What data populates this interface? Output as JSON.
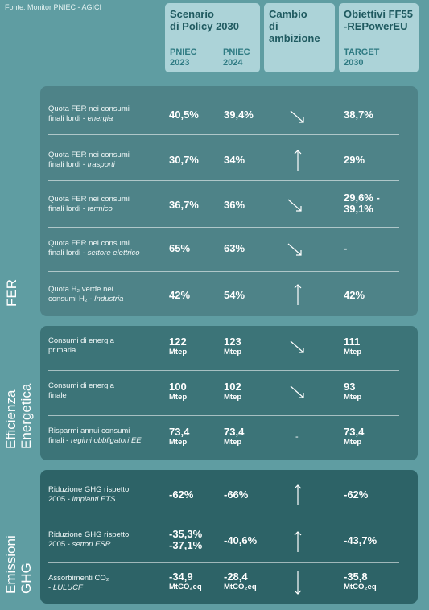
{
  "source": "Fonte: Monitor PNIEC - AGICI",
  "header": {
    "scenario_title": [
      "Scenario",
      "di Policy 2030"
    ],
    "pniec2023": [
      "PNIEC",
      "2023"
    ],
    "pniec2024": [
      "PNIEC",
      "2024"
    ],
    "cambio_title": [
      "Cambio",
      "di ambizione"
    ],
    "obiettivi_title": [
      "Obiettivi FF55",
      "-REPowerEU"
    ],
    "target": [
      "TARGET",
      "2030"
    ]
  },
  "sections": [
    {
      "label": "FER",
      "rows": [
        {
          "l1": "Quota FER nei consumi",
          "l2a": "finali lordi - ",
          "l2i": "energia",
          "v2023": "40,5%",
          "v2024": "39,4%",
          "change": "down",
          "target": "38,7%"
        },
        {
          "l1": "Quota FER nei consumi",
          "l2a": "finali lordi - ",
          "l2i": "trasporti",
          "v2023": "30,7%",
          "v2024": "34%",
          "change": "up",
          "target": "29%"
        },
        {
          "l1": "Quota FER nei consumi",
          "l2a": "finali lordi - ",
          "l2i": "termico",
          "v2023": "36,7%",
          "v2024": "36%",
          "change": "down",
          "target": "29,6% -",
          "target2": "39,1%"
        },
        {
          "l1": "Quota FER nei consumi",
          "l2a": "finali lordi - ",
          "l2i": "settore elettrico",
          "v2023": "65%",
          "v2024": "63%",
          "change": "down",
          "target": "-"
        },
        {
          "l1": "Quota H₂ verde nei",
          "l2a": "consumi H₂ - ",
          "l2i": "Industria",
          "v2023": "42%",
          "v2024": "54%",
          "change": "up",
          "target": "42%"
        }
      ]
    },
    {
      "label": [
        "Efficienza",
        "Energetica"
      ],
      "rows": [
        {
          "l1": "Consumi di energia",
          "l2a": "primaria",
          "l2i": "",
          "v2023": "122",
          "u2023": "Mtep",
          "v2024": "123",
          "u2024": "Mtep",
          "change": "down",
          "target": "111",
          "utarget": "Mtep"
        },
        {
          "l1": "Consumi di energia",
          "l2a": "finale",
          "l2i": "",
          "v2023": "100",
          "u2023": "Mtep",
          "v2024": "102",
          "u2024": "Mtep",
          "change": "down",
          "target": "93",
          "utarget": "Mtep"
        },
        {
          "l1": "Risparmi annui consumi",
          "l2a": "finali - ",
          "l2i": "regimi obbligatori EE",
          "v2023": "73,4",
          "u2023": "Mtep",
          "v2024": "73,4",
          "u2024": "Mtep",
          "change": "flat",
          "change_text": "-",
          "target": "73,4",
          "utarget": "Mtep"
        }
      ]
    },
    {
      "label": [
        "Emissioni",
        "GHG"
      ],
      "rows": [
        {
          "l1": "Riduzione GHG rispetto",
          "l2a": "2005 - ",
          "l2i": "impianti ETS",
          "v2023": "-62%",
          "v2024": "-66%",
          "change": "up",
          "target": "-62%"
        },
        {
          "l1": "Riduzione GHG rispetto",
          "l2a": "2005 - ",
          "l2i": "settori ESR",
          "v2023": "-35,3%",
          "v2023b": "-37,1%",
          "v2024": "-40,6%",
          "change": "up",
          "target": "-43,7%"
        },
        {
          "l1": "Assorbimenti CO₂",
          "l2a": "- ",
          "l2i": "LULUCF",
          "v2023": "-34,9",
          "u2023": "MtCO₂eq",
          "v2024": "-28,4",
          "u2024": "MtCO₂eq",
          "change": "down_vertical",
          "target": "-35,8",
          "utarget": "MtCO₂eq"
        }
      ]
    }
  ],
  "colors": {
    "background": "#5f9da2",
    "header_box": "#acd3d8",
    "panel_fer": "#4e8388",
    "panel_efficienza": "#3c7478",
    "panel_emissioni": "#2d6367"
  }
}
